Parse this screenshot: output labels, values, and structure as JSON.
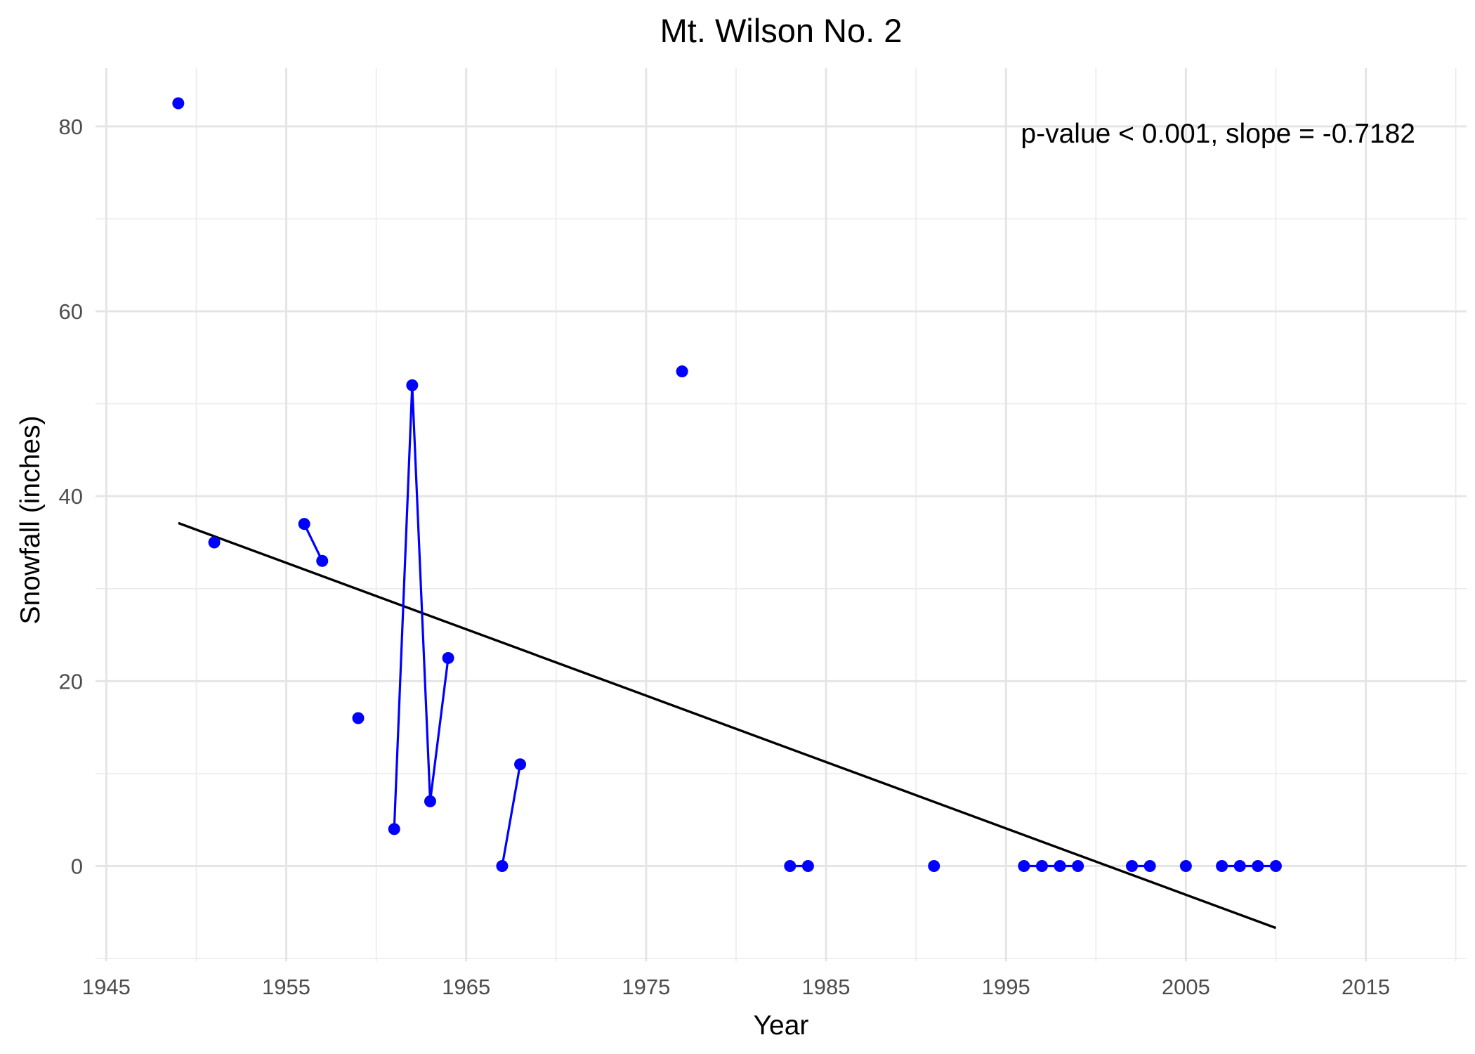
{
  "chart_data": {
    "type": "line",
    "title": "Mt. Wilson No. 2",
    "xlabel": "Year",
    "ylabel": "Snowfall (inches)",
    "annotation": "p-value < 0.001, slope = -0.7182",
    "xlim": [
      1944.4,
      2020.6
    ],
    "ylim": [
      -10.3,
      86.3
    ],
    "x_ticks": [
      1945,
      1955,
      1965,
      1975,
      1985,
      1995,
      2005,
      2015
    ],
    "y_ticks": [
      0,
      20,
      40,
      60,
      80
    ],
    "grid": true,
    "series": [
      {
        "color": "#0000ff",
        "points": [
          [
            1949,
            82.5
          ],
          [
            1951,
            35
          ],
          [
            1956,
            37
          ],
          [
            1957,
            33
          ],
          [
            1959,
            16
          ],
          [
            1961,
            4
          ],
          [
            1962,
            52
          ],
          [
            1963,
            7
          ],
          [
            1964,
            22.5
          ],
          [
            1967,
            0
          ],
          [
            1968,
            11
          ],
          [
            1977,
            53.5
          ],
          [
            1983,
            0
          ],
          [
            1984,
            0
          ],
          [
            1991,
            0
          ],
          [
            1996,
            0
          ],
          [
            1997,
            0
          ],
          [
            1998,
            0
          ],
          [
            1999,
            0
          ],
          [
            2002,
            0
          ],
          [
            2003,
            0
          ],
          [
            2005,
            0
          ],
          [
            2007,
            0
          ],
          [
            2008,
            0
          ],
          [
            2009,
            0
          ],
          [
            2010,
            0
          ]
        ]
      }
    ],
    "trend_line": {
      "color": "#000000",
      "x": [
        1949,
        2010
      ],
      "y": [
        37.1,
        -6.7
      ]
    }
  }
}
